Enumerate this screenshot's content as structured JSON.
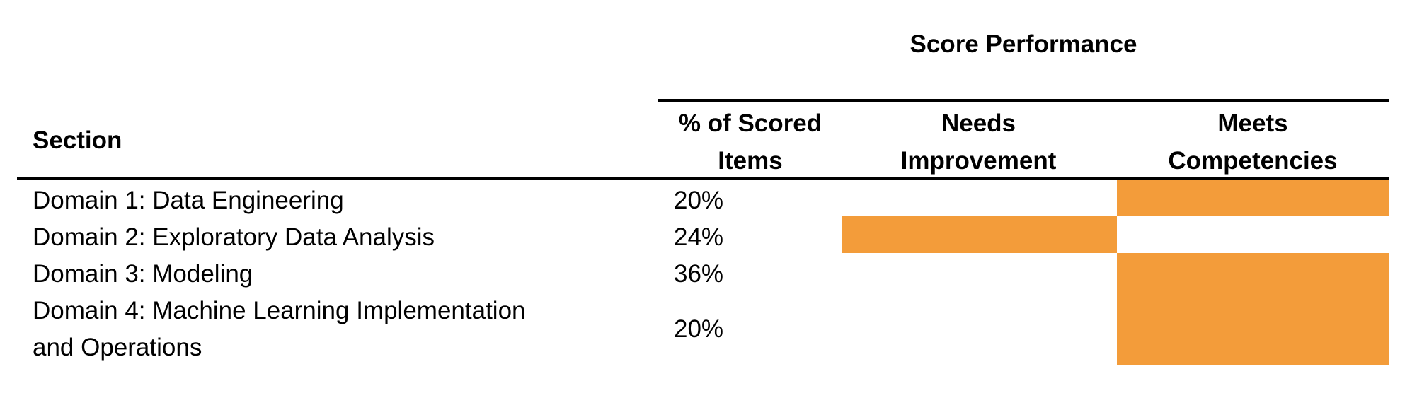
{
  "table": {
    "group_title": "Score Performance",
    "headers": {
      "section": "Section",
      "scored_items_line1": "% of Scored",
      "scored_items_line2": "Items",
      "needs_improvement_line1": "Needs",
      "needs_improvement_line2": "Improvement",
      "meets_competencies_line1": "Meets",
      "meets_competencies_line2": "Competencies"
    },
    "rows": [
      {
        "section": "Domain 1: Data Engineering",
        "section_line2": "",
        "scored": "20%",
        "performance": "Meets Competencies"
      },
      {
        "section": "Domain 2: Exploratory Data Analysis",
        "section_line2": "",
        "scored": "24%",
        "performance": "Needs Improvement"
      },
      {
        "section": "Domain 3: Modeling",
        "section_line2": "",
        "scored": "36%",
        "performance": "Meets Competencies"
      },
      {
        "section": "Domain 4: Machine Learning Implementation",
        "section_line2": "and Operations",
        "scored": "20%",
        "performance": "Meets Competencies"
      }
    ],
    "colors": {
      "bar": "#f39c3a",
      "rule": "#000000"
    }
  }
}
